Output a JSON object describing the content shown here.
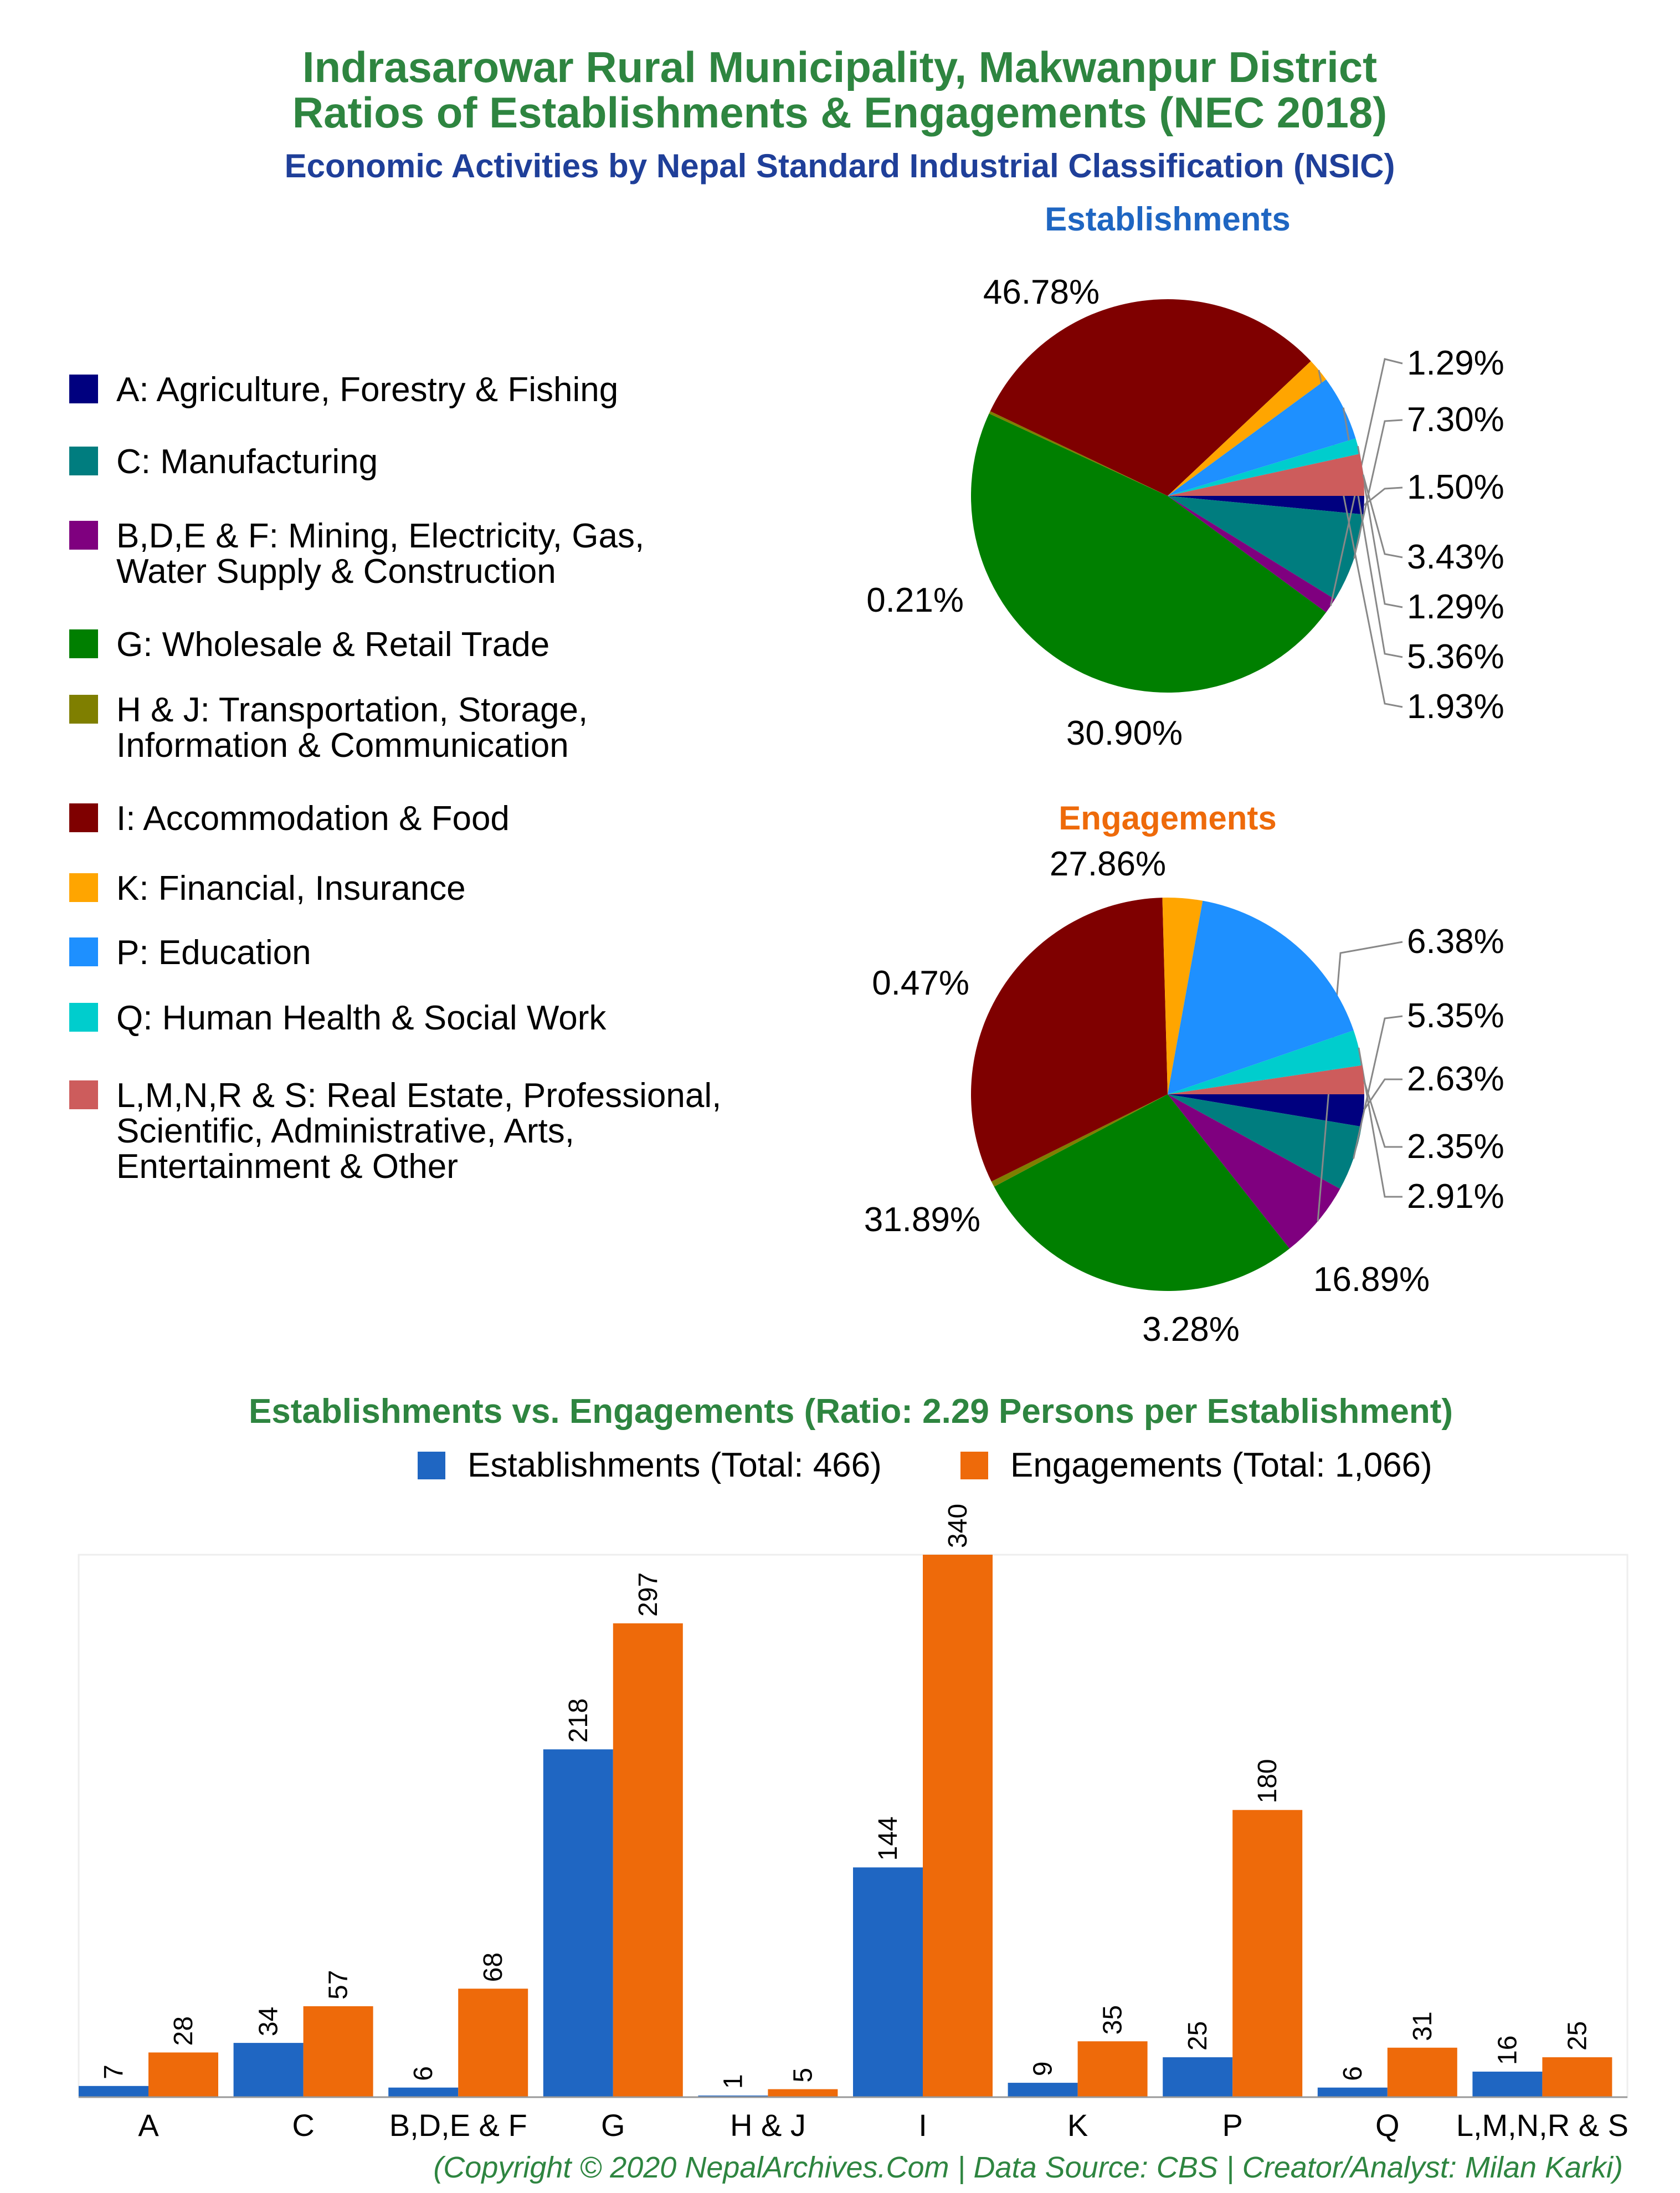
{
  "header": {
    "title_line1": "Indrasarowar Rural Municipality, Makwanpur District",
    "title_line2": "Ratios of Establishments & Engagements (NEC 2018)",
    "subtitle": "Economic Activities by Nepal Standard Industrial Classification (NSIC)"
  },
  "colors": {
    "A": "#00007f",
    "C": "#007d7f",
    "BDEF": "#7f007f",
    "G": "#007f00",
    "HJ": "#7f7f00",
    "I": "#7f0000",
    "K": "#ffa500",
    "P": "#1e90ff",
    "Q": "#00cdcd",
    "LMNRS": "#cd5c5c",
    "establishments": "#1f66c2",
    "engagements": "#ee6a0a"
  },
  "legend": [
    {
      "key": "A",
      "lines": [
        "A: Agriculture, Forestry & Fishing"
      ]
    },
    {
      "key": "C",
      "lines": [
        "C: Manufacturing"
      ]
    },
    {
      "key": "BDEF",
      "lines": [
        "B,D,E & F: Mining, Electricity, Gas,",
        "Water Supply & Construction"
      ]
    },
    {
      "key": "G",
      "lines": [
        "G: Wholesale & Retail Trade"
      ]
    },
    {
      "key": "HJ",
      "lines": [
        "H & J: Transportation, Storage,",
        "Information & Communication"
      ]
    },
    {
      "key": "I",
      "lines": [
        "I: Accommodation & Food"
      ]
    },
    {
      "key": "K",
      "lines": [
        "K: Financial, Insurance"
      ]
    },
    {
      "key": "P",
      "lines": [
        "P: Education"
      ]
    },
    {
      "key": "Q",
      "lines": [
        "Q: Human Health & Social Work"
      ]
    },
    {
      "key": "LMNRS",
      "lines": [
        "L,M,N,R & S: Real Estate, Professional,",
        "Scientific, Administrative, Arts,",
        "Entertainment & Other"
      ]
    }
  ],
  "chart_data": [
    {
      "type": "pie",
      "title": "Establishments",
      "slices": [
        {
          "key": "A",
          "label": "1.50%",
          "value": 1.5
        },
        {
          "key": "C",
          "label": "7.30%",
          "value": 7.3
        },
        {
          "key": "BDEF",
          "label": "1.29%",
          "value": 1.29
        },
        {
          "key": "G",
          "label": "46.78%",
          "value": 46.78
        },
        {
          "key": "HJ",
          "label": "0.21%",
          "value": 0.21
        },
        {
          "key": "I",
          "label": "30.90%",
          "value": 30.9
        },
        {
          "key": "K",
          "label": "1.93%",
          "value": 1.93
        },
        {
          "key": "P",
          "label": "5.36%",
          "value": 5.36
        },
        {
          "key": "Q",
          "label": "1.29%",
          "value": 1.29
        },
        {
          "key": "LMNRS",
          "label": "3.43%",
          "value": 3.43
        }
      ]
    },
    {
      "type": "pie",
      "title": "Engagements",
      "slices": [
        {
          "key": "A",
          "label": "2.63%",
          "value": 2.63
        },
        {
          "key": "C",
          "label": "5.35%",
          "value": 5.35
        },
        {
          "key": "BDEF",
          "label": "6.38%",
          "value": 6.38
        },
        {
          "key": "G",
          "label": "27.86%",
          "value": 27.86
        },
        {
          "key": "HJ",
          "label": "0.47%",
          "value": 0.47
        },
        {
          "key": "I",
          "label": "31.89%",
          "value": 31.89
        },
        {
          "key": "K",
          "label": "3.28%",
          "value": 3.28
        },
        {
          "key": "P",
          "label": "16.89%",
          "value": 16.89
        },
        {
          "key": "Q",
          "label": "2.91%",
          "value": 2.91
        },
        {
          "key": "LMNRS",
          "label": "2.35%",
          "value": 2.35
        }
      ]
    },
    {
      "type": "bar",
      "title": "Establishments vs. Engagements (Ratio: 2.29 Persons per Establishment)",
      "categories": [
        "A",
        "C",
        "B,D,E & F",
        "G",
        "H & J",
        "I",
        "K",
        "P",
        "Q",
        "L,M,N,R & S"
      ],
      "series": [
        {
          "name": "Establishments (Total: 466)",
          "values": [
            7,
            34,
            6,
            218,
            1,
            144,
            9,
            25,
            6,
            16
          ]
        },
        {
          "name": "Engagements (Total: 1,066)",
          "values": [
            28,
            57,
            68,
            297,
            5,
            340,
            35,
            180,
            31,
            25
          ]
        }
      ],
      "ylim": [
        0,
        340
      ],
      "legend_position": "top",
      "grid": false
    }
  ],
  "footer": "(Copyright © 2020 NepalArchives.Com | Data Source: CBS | Creator/Analyst: Milan Karki)"
}
